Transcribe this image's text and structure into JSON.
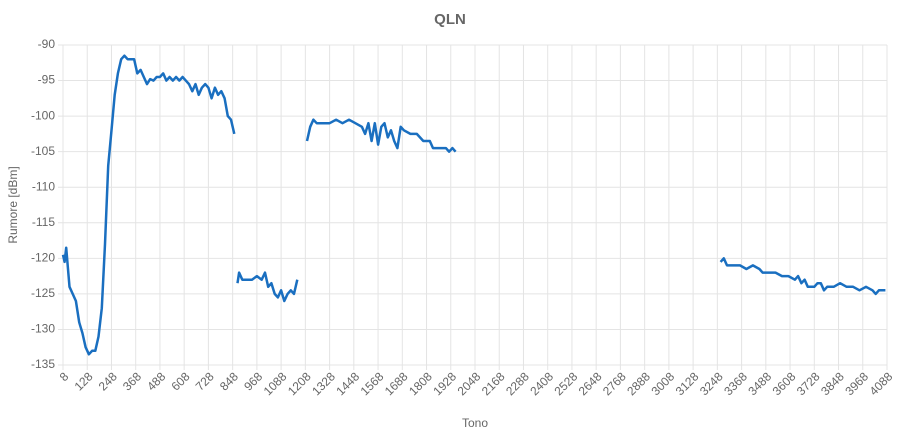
{
  "chart_data": {
    "type": "line",
    "title": "QLN",
    "x_label": "Tono",
    "y_label": "Rumore [dBm]",
    "x": [
      8,
      16,
      24,
      40,
      56,
      72,
      88,
      104,
      120,
      136,
      152,
      168,
      184,
      200,
      216,
      232,
      248,
      264,
      280,
      296,
      312,
      328,
      344,
      360,
      376,
      392,
      408,
      424,
      440,
      456,
      472,
      488,
      504,
      520,
      536,
      552,
      568,
      584,
      600,
      616,
      632,
      648,
      664,
      680,
      696,
      712,
      728,
      744,
      760,
      776,
      792,
      808,
      824,
      840,
      856,
      864,
      872,
      880,
      896,
      920,
      944,
      968,
      992,
      1008,
      1024,
      1040,
      1056,
      1072,
      1088,
      1104,
      1120,
      1136,
      1152,
      1168,
      1192,
      1216,
      1232,
      1248,
      1264,
      1296,
      1328,
      1360,
      1392,
      1424,
      1456,
      1488,
      1504,
      1520,
      1536,
      1552,
      1568,
      1584,
      1600,
      1616,
      1632,
      1648,
      1664,
      1680,
      1696,
      1728,
      1760,
      1792,
      1824,
      1840,
      1872,
      1904,
      1920,
      1936,
      1952,
      2000,
      3264,
      3280,
      3296,
      3328,
      3360,
      3392,
      3424,
      3456,
      3472,
      3504,
      3536,
      3568,
      3600,
      3632,
      3648,
      3664,
      3680,
      3696,
      3728,
      3744,
      3760,
      3776,
      3792,
      3824,
      3856,
      3888,
      3920,
      3952,
      3984,
      4016,
      4032,
      4048,
      4064,
      4080
    ],
    "series": [
      {
        "name": "QLN",
        "color": "#1a6fc0",
        "values": [
          -119.5,
          -120.5,
          -118.5,
          -124,
          -125,
          -126,
          -129,
          -130.5,
          -132.5,
          -133.5,
          -133,
          -133,
          -131,
          -127,
          -118,
          -107,
          -102,
          -97,
          -94,
          -92,
          -91.5,
          -92,
          -92,
          -92,
          -94,
          -93.5,
          -94.5,
          -95.5,
          -94.8,
          -95,
          -94.5,
          -94.5,
          -94,
          -95,
          -94.5,
          -95,
          -94.5,
          -95,
          -94.5,
          -95,
          -95.5,
          -96.5,
          -95.5,
          -97,
          -96,
          -95.5,
          -96,
          -97.5,
          -96,
          -97,
          -96.5,
          -97.5,
          -100,
          -100.5,
          -102.5,
          null,
          -123.5,
          -122,
          -123,
          -123,
          -123,
          -122.5,
          -123,
          -122,
          -124,
          -123.5,
          -125,
          -125.5,
          -124.5,
          -126,
          -125,
          -124.5,
          -125,
          -123,
          null,
          -103.5,
          -101.5,
          -100.5,
          -101,
          -101,
          -101,
          -100.5,
          -101,
          -100.5,
          -101,
          -101.5,
          -102.5,
          -101,
          -103.5,
          -101,
          -104,
          -101.5,
          -101,
          -103,
          -102,
          -103.5,
          -104.5,
          -101.5,
          -102,
          -102.5,
          -102.5,
          -103.5,
          -103.5,
          -104.5,
          -104.5,
          -104.5,
          -105,
          -104.5,
          -105,
          null,
          -120.5,
          -120,
          -121,
          -121,
          -121,
          -121.5,
          -121,
          -121.5,
          -122,
          -122,
          -122,
          -122.5,
          -122.5,
          -123,
          -122.5,
          -123.5,
          -123,
          -124,
          -124,
          -123.5,
          -123.5,
          -124.5,
          -124,
          -124,
          -123.5,
          -124,
          -124,
          -124.5,
          -124,
          -124.5,
          -125,
          -124.5,
          -124.5,
          -124.5
        ]
      }
    ],
    "xlim": [
      8,
      4088
    ],
    "xticks": [
      8,
      128,
      248,
      368,
      488,
      608,
      728,
      848,
      968,
      1088,
      1208,
      1328,
      1448,
      1568,
      1688,
      1808,
      1928,
      2048,
      2168,
      2288,
      2408,
      2528,
      2648,
      2768,
      2888,
      3008,
      3128,
      3248,
      3368,
      3488,
      3608,
      3728,
      3848,
      3968,
      4088
    ],
    "ylim": [
      -135,
      -90
    ],
    "yticks": [
      -90,
      -95,
      -100,
      -105,
      -110,
      -115,
      -120,
      -125,
      -130,
      -135
    ],
    "grid": true
  }
}
